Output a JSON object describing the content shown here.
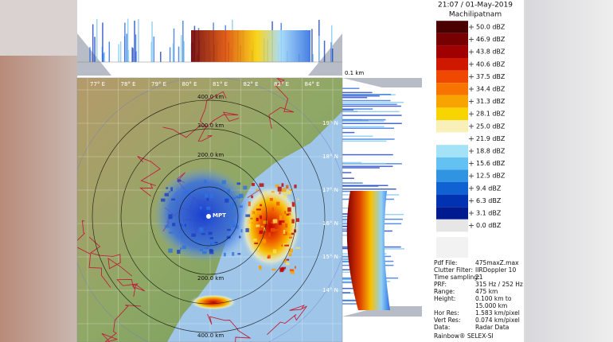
{
  "header": {
    "time": "21:07 / 01-May-2019",
    "station": "Machilipatnam"
  },
  "legend": [
    {
      "label": "50.0 dBZ",
      "color": "#4a0000"
    },
    {
      "label": "46.9 dBZ",
      "color": "#780000"
    },
    {
      "label": "43.8 dBZ",
      "color": "#a00000"
    },
    {
      "label": "40.6 dBZ",
      "color": "#d01800"
    },
    {
      "label": "37.5 dBZ",
      "color": "#f04800"
    },
    {
      "label": "34.4 dBZ",
      "color": "#f87400"
    },
    {
      "label": "31.3 dBZ",
      "color": "#f8a400"
    },
    {
      "label": "28.1 dBZ",
      "color": "#f8d400"
    },
    {
      "label": "25.0 dBZ",
      "color": "#f8f0b8"
    },
    {
      "label": "21.9 dBZ",
      "color": "#ffffff"
    },
    {
      "label": "18.8 dBZ",
      "color": "#a4e2f8"
    },
    {
      "label": "15.6 dBZ",
      "color": "#64c2f2"
    },
    {
      "label": "12.5 dBZ",
      "color": "#3094e2"
    },
    {
      "label": "9.4 dBZ",
      "color": "#1062d2"
    },
    {
      "label": "6.3 dBZ",
      "color": "#0032b2"
    },
    {
      "label": "3.1 dBZ",
      "color": "#001a90"
    },
    {
      "label": "0.0 dBZ",
      "color": "#e6e6e6"
    }
  ],
  "info": [
    {
      "key": "Pdf File:",
      "value": "475maxZ.max"
    },
    {
      "key": "Clutter Filter:",
      "value": "IIRDoppler 10"
    },
    {
      "key": "Time sampling:",
      "value": "21"
    },
    {
      "key": "PRF:",
      "value": "315 Hz / 252 Hz"
    },
    {
      "key": "Range:",
      "value": "475 km"
    },
    {
      "key": "Height:",
      "value": "0.100 km to"
    },
    {
      "key": "",
      "value": "15.000 km"
    },
    {
      "key": "Hor Res:",
      "value": "1.583 km/pixel"
    },
    {
      "key": "Vert Res:",
      "value": "0.074 km/pixel"
    },
    {
      "key": "Data:",
      "value": "Radar Data"
    }
  ],
  "footer": "Rainbow® SELEX-SI",
  "map": {
    "height_label": "0.1 km",
    "station": "MPT",
    "ring_labels": [
      "400.0 km",
      "300.0 km",
      "200.0 km",
      "200.0 km",
      "400.0 km"
    ],
    "lon_labels": [
      "77° E",
      "78° E",
      "79° E",
      "80° E",
      "81° E",
      "82° E",
      "83° E",
      "84° E"
    ],
    "lat_labels": [
      "19° N",
      "18° N",
      "17° N",
      "16° N",
      "15° N",
      "14° N"
    ]
  }
}
